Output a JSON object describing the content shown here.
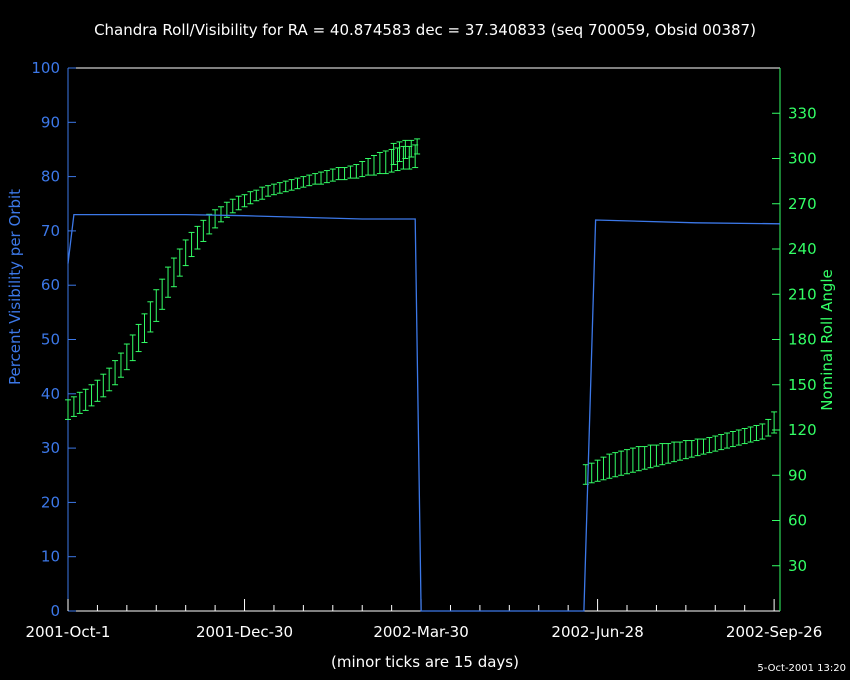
{
  "chart_data": {
    "type": "line",
    "title": "Chandra Roll/Visibility for RA = 40.874583 dec = 37.340833 (seq 700059, Obsid 00387)",
    "xlabel": "(minor ticks are 15 days)",
    "x_tick_labels": [
      "2001-Oct-1",
      "2001-Dec-30",
      "2002-Mar-30",
      "2002-Jun-28",
      "2002-Sep-26"
    ],
    "x_tick_days": [
      0,
      90,
      180,
      270,
      360
    ],
    "x_minor_tick_days": 15,
    "xlim_days": [
      0,
      363
    ],
    "ylabel_left": "Percent Visibility per Orbit",
    "ylim_left": [
      0,
      100
    ],
    "yticks_left": [
      0,
      10,
      20,
      30,
      40,
      50,
      60,
      70,
      80,
      90,
      100
    ],
    "ylabel_right": "Nominal Roll Angle",
    "ylim_right": [
      0,
      360
    ],
    "yticks_right": [
      30,
      60,
      90,
      120,
      150,
      180,
      210,
      240,
      270,
      300,
      330
    ],
    "timestamp": "5-Oct-2001 13:20",
    "colors": {
      "axes": "#ffffff",
      "visibility": "#3c78e8",
      "roll": "#33ff66",
      "background": "#000000"
    },
    "visibility_series": {
      "name": "",
      "points": [
        [
          0,
          64
        ],
        [
          3,
          73
        ],
        [
          60,
          73
        ],
        [
          90,
          72.8
        ],
        [
          150,
          72.2
        ],
        [
          177,
          72.2
        ],
        [
          180,
          0
        ],
        [
          263,
          0
        ],
        [
          269,
          72
        ],
        [
          320,
          71.5
        ],
        [
          363,
          71.3
        ]
      ]
    },
    "roll_series": {
      "name": "",
      "start_day": 0,
      "step_days": 3,
      "low": [
        127,
        129,
        131,
        133,
        136,
        139,
        142,
        146,
        150,
        155,
        160,
        166,
        172,
        178,
        185,
        192,
        200,
        208,
        215,
        222,
        229,
        235,
        240,
        245,
        250,
        254,
        258,
        261,
        264,
        266,
        268,
        270,
        272,
        273,
        275,
        276,
        277,
        278,
        279,
        280,
        281,
        282,
        283,
        283,
        284,
        285,
        286,
        286,
        287,
        287,
        288,
        289,
        289,
        290,
        290,
        291,
        292,
        293,
        293,
        294
      ],
      "high": [
        140,
        142,
        145,
        147,
        150,
        153,
        157,
        161,
        166,
        171,
        177,
        183,
        190,
        197,
        205,
        213,
        220,
        228,
        234,
        240,
        246,
        251,
        255,
        259,
        263,
        266,
        268,
        271,
        273,
        275,
        276,
        278,
        279,
        281,
        282,
        283,
        284,
        285,
        286,
        287,
        288,
        289,
        290,
        291,
        292,
        293,
        294,
        294,
        295,
        296,
        298,
        300,
        302,
        304,
        305,
        306,
        307,
        308,
        308,
        309
      ],
      "segment2_start_day": 166,
      "segment2_step_days": 3,
      "segment2_low": [
        296,
        298,
        300,
        301,
        303
      ],
      "segment2_high": [
        310,
        311,
        312,
        312,
        313
      ],
      "segment3_start_day": 264,
      "segment3_step_days": 3,
      "segment3_low": [
        84,
        85,
        86,
        87,
        88,
        89,
        90,
        91,
        92,
        93,
        94,
        95,
        96,
        97,
        98,
        99,
        100,
        101,
        102,
        103,
        104,
        105,
        106,
        107,
        108,
        109,
        110,
        111,
        112,
        113,
        114,
        116,
        118
      ],
      "segment3_high": [
        97,
        98,
        100,
        102,
        104,
        105,
        106,
        107,
        108,
        109,
        109,
        110,
        110,
        111,
        111,
        112,
        112,
        113,
        113,
        114,
        114,
        115,
        116,
        117,
        118,
        119,
        120,
        121,
        122,
        123,
        124,
        127,
        132
      ]
    }
  }
}
